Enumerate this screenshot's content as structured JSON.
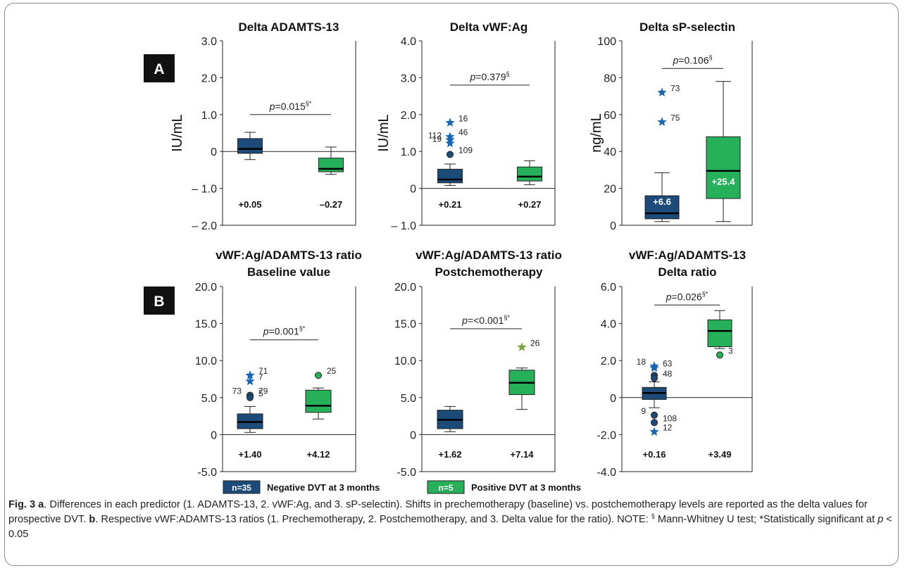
{
  "panel_labels": [
    "A",
    "B"
  ],
  "colors": {
    "negative": "#1c4b7a",
    "positive": "#27b05a",
    "star_neg": "#1a66b5",
    "star_pos": "#7ba23f",
    "outlier_neg": "#1c4b7a",
    "outlier_pos": "#27b05a",
    "label_box": "#111111"
  },
  "legend": [
    {
      "badge": "n=35",
      "label": "Negative DVT at 3 months",
      "color": "#1c4b7a"
    },
    {
      "badge": "n=5",
      "label": "Positive DVT at 3 months",
      "color": "#27b05a"
    }
  ],
  "caption": {
    "fig": "Fig. 3",
    "a_letter": "a",
    "text1": ". Differences in each predictor (1. ADAMTS-13, 2. vWF:Ag, and 3. sP-selectin). Shifts in prechemotherapy (baseline) vs. postchemotherapy levels are reported as the delta values for prospective DVT. ",
    "b_letter": "b",
    "text2": ". Respective vWF:ADAMTS-13 ratios (1. Prechemotherapy, 2. Postchemotherapy, and 3. Delta value for the ratio). NOTE: ",
    "sect": "§",
    "text3": " Mann-Whitney U test; *Statistically significant at ",
    "p": "p",
    "text4": " < 0.05"
  },
  "chart_data": [
    {
      "type": "box",
      "title": [
        "Delta ADAMTS-13"
      ],
      "ylabel": "IU/mL",
      "ylim": [
        -2.0,
        3.0
      ],
      "yticks": [
        -2.0,
        -1.0,
        0,
        1.0,
        2.0,
        3.0
      ],
      "ytick_labels": [
        "– 2.0",
        "– 1.0",
        "0",
        "1.0",
        "2.0",
        "3.0"
      ],
      "zero_line": true,
      "pvalue": {
        "italic": "p",
        "text": "=0.015",
        "sup": "§*",
        "y": 1.0
      },
      "groups": [
        {
          "name": "Negative DVT at 3 months",
          "whisker_low": -0.22,
          "q1": -0.05,
          "median": 0.07,
          "q3": 0.35,
          "whisker_high": 0.52,
          "mean_label": "+0.05",
          "outliers": [],
          "label_inside": ""
        },
        {
          "name": "Positive DVT at 3 months",
          "whisker_low": -0.62,
          "q1": -0.55,
          "median": -0.47,
          "q3": -0.18,
          "whisker_high": 0.12,
          "mean_label": "–0.27",
          "outliers": [],
          "label_inside": ""
        }
      ]
    },
    {
      "type": "box",
      "title": [
        "Delta vWF:Ag"
      ],
      "ylabel": "IU/mL",
      "ylim": [
        -1.0,
        4.0
      ],
      "yticks": [
        -1.0,
        0,
        1.0,
        2.0,
        3.0,
        4.0
      ],
      "ytick_labels": [
        "– 1.0",
        "0",
        "1.0",
        "2.0",
        "3.0",
        "4.0"
      ],
      "zero_line": true,
      "pvalue": {
        "italic": "p",
        "text": "=0.379",
        "sup": "§",
        "y": 2.8
      },
      "groups": [
        {
          "name": "Negative DVT at 3 months",
          "whisker_low": 0.08,
          "q1": 0.15,
          "median": 0.24,
          "q3": 0.52,
          "whisker_high": 0.66,
          "mean_label": "+0.21",
          "label_inside": "",
          "outliers": [
            {
              "value": 1.78,
              "kind": "star",
              "label": "16",
              "label_side": "right"
            },
            {
              "value": 1.4,
              "kind": "star",
              "label": "46",
              "label_side": "right"
            },
            {
              "value": 1.32,
              "kind": "star",
              "label": "112",
              "label_side": "left"
            },
            {
              "value": 1.22,
              "kind": "star",
              "label": "19",
              "label_side": "left"
            },
            {
              "value": 0.92,
              "kind": "circle",
              "label": "109",
              "label_side": "right"
            }
          ]
        },
        {
          "name": "Positive DVT at 3 months",
          "whisker_low": 0.1,
          "q1": 0.2,
          "median": 0.32,
          "q3": 0.58,
          "whisker_high": 0.75,
          "mean_label": "+0.27",
          "outliers": [],
          "label_inside": ""
        }
      ]
    },
    {
      "type": "box",
      "title": [
        "Delta sP-selectin"
      ],
      "ylabel": "ng/mL",
      "ylim": [
        0,
        100
      ],
      "yticks": [
        0,
        20,
        40,
        60,
        80,
        100
      ],
      "ytick_labels": [
        "0",
        "20",
        "40",
        "60",
        "80",
        "100"
      ],
      "zero_line": false,
      "pvalue": {
        "italic": "p",
        "text": "=0.106",
        "sup": "§",
        "y": 85
      },
      "groups": [
        {
          "name": "Negative DVT at 3 months",
          "whisker_low": 2,
          "q1": 3.5,
          "median": 6.5,
          "q3": 16,
          "whisker_high": 28.5,
          "mean_label": "",
          "label_inside": "+6.6",
          "outliers": [
            {
              "value": 72,
              "kind": "star",
              "label": "73",
              "label_side": "right"
            },
            {
              "value": 56,
              "kind": "star",
              "label": "75",
              "label_side": "right"
            }
          ]
        },
        {
          "name": "Positive DVT at 3 months",
          "whisker_low": 2,
          "q1": 14.5,
          "median": 29.5,
          "q3": 48,
          "whisker_high": 78,
          "mean_label": "",
          "label_inside": "+25.4",
          "outliers": []
        }
      ]
    },
    {
      "type": "box",
      "title": [
        "vWF:Ag/ADAMTS-13 ratio",
        "Baseline value"
      ],
      "ylabel": "",
      "ylim": [
        -5.0,
        20.0
      ],
      "yticks": [
        -5.0,
        0,
        5.0,
        10.0,
        15.0,
        20.0
      ],
      "ytick_labels": [
        "-5.0",
        "0",
        "5.0",
        "10.0",
        "15.0",
        "20.0"
      ],
      "zero_line": true,
      "pvalue": {
        "italic": "p",
        "text": "=0.001",
        "sup": "§*",
        "y": 12.8
      },
      "groups": [
        {
          "name": "Negative DVT at 3 months",
          "whisker_low": 0.3,
          "q1": 0.8,
          "median": 1.7,
          "q3": 2.8,
          "whisker_high": 3.8,
          "mean_label": "+1.40",
          "label_inside": "",
          "outliers": [
            {
              "value": 8.0,
              "kind": "star",
              "label": "71",
              "label_side": "right"
            },
            {
              "value": 7.2,
              "kind": "star",
              "label": "7",
              "label_side": "right"
            },
            {
              "value": 5.3,
              "kind": "circle",
              "label": "73",
              "label_side": "left"
            },
            {
              "value": 5.3,
              "kind": "circle",
              "label": "79",
              "label_side": "right"
            },
            {
              "value": 5.0,
              "kind": "circle",
              "label": "5",
              "label_side": "right"
            }
          ]
        },
        {
          "name": "Positive DVT at 3 months",
          "whisker_low": 2.1,
          "q1": 3.0,
          "median": 3.9,
          "q3": 6.0,
          "whisker_high": 6.3,
          "mean_label": "+4.12",
          "label_inside": "",
          "outliers": [
            {
              "value": 8.0,
              "kind": "circle",
              "label": "25",
              "label_side": "right"
            }
          ]
        }
      ]
    },
    {
      "type": "box",
      "title": [
        "vWF:Ag/ADAMTS-13 ratio",
        "Postchemotherapy"
      ],
      "ylabel": "",
      "ylim": [
        -5.0,
        20.0
      ],
      "yticks": [
        -5.0,
        0,
        5.0,
        10.0,
        15.0,
        20.0
      ],
      "ytick_labels": [
        "-5.0",
        "0",
        "5.0",
        "10.0",
        "15.0",
        "20.0"
      ],
      "zero_line": true,
      "pvalue": {
        "italic": "p",
        "text": "=<0.001",
        "sup": "§*",
        "y": 14.3
      },
      "groups": [
        {
          "name": "Negative DVT at 3 months",
          "whisker_low": 0.4,
          "q1": 0.8,
          "median": 2.0,
          "q3": 3.3,
          "whisker_high": 3.8,
          "mean_label": "+1.62",
          "outliers": [],
          "label_inside": ""
        },
        {
          "name": "Positive DVT at 3 months",
          "whisker_low": 3.4,
          "q1": 5.4,
          "median": 7.0,
          "q3": 8.7,
          "whisker_high": 9.0,
          "mean_label": "+7.14",
          "label_inside": "",
          "outliers": [
            {
              "value": 11.8,
              "kind": "star",
              "label": "26",
              "label_side": "right"
            }
          ]
        }
      ]
    },
    {
      "type": "box",
      "title": [
        "vWF:Ag/ADAMTS-13",
        "Delta ratio"
      ],
      "ylabel": "",
      "ylim": [
        -4.0,
        6.0
      ],
      "yticks": [
        -4.0,
        -2.0,
        0,
        2.0,
        4.0,
        6.0
      ],
      "ytick_labels": [
        "-4.0",
        "-2.0",
        "0",
        "2.0",
        "4.0",
        "6.0"
      ],
      "zero_line": true,
      "pvalue": {
        "italic": "p",
        "text": "=0.026",
        "sup": "§*",
        "y": 5.0
      },
      "groups": [
        {
          "name": "Negative DVT at 3 months",
          "whisker_low": -0.55,
          "q1": -0.1,
          "median": 0.25,
          "q3": 0.55,
          "whisker_high": 0.85,
          "mean_label": "+0.16",
          "label_inside": "",
          "outliers": [
            {
              "value": 1.7,
              "kind": "star",
              "label": "18",
              "label_side": "left"
            },
            {
              "value": 1.6,
              "kind": "star",
              "label": "63",
              "label_side": "right"
            },
            {
              "value": 1.2,
              "kind": "circle",
              "label": "",
              "label_side": "right"
            },
            {
              "value": 1.05,
              "kind": "circle",
              "label": "48",
              "label_side": "right"
            },
            {
              "value": -0.95,
              "kind": "circle",
              "label": "9",
              "label_side": "left"
            },
            {
              "value": -1.35,
              "kind": "circle",
              "label": "108",
              "label_side": "right"
            },
            {
              "value": -1.85,
              "kind": "star",
              "label": "12",
              "label_side": "right"
            }
          ]
        },
        {
          "name": "Positive DVT at 3 months",
          "whisker_low": 2.65,
          "q1": 2.75,
          "median": 3.6,
          "q3": 4.2,
          "whisker_high": 4.7,
          "mean_label": "+3.49",
          "label_inside": "",
          "outliers": [
            {
              "value": 2.3,
              "kind": "circle",
              "label": "3",
              "label_side": "right"
            }
          ]
        }
      ]
    }
  ]
}
